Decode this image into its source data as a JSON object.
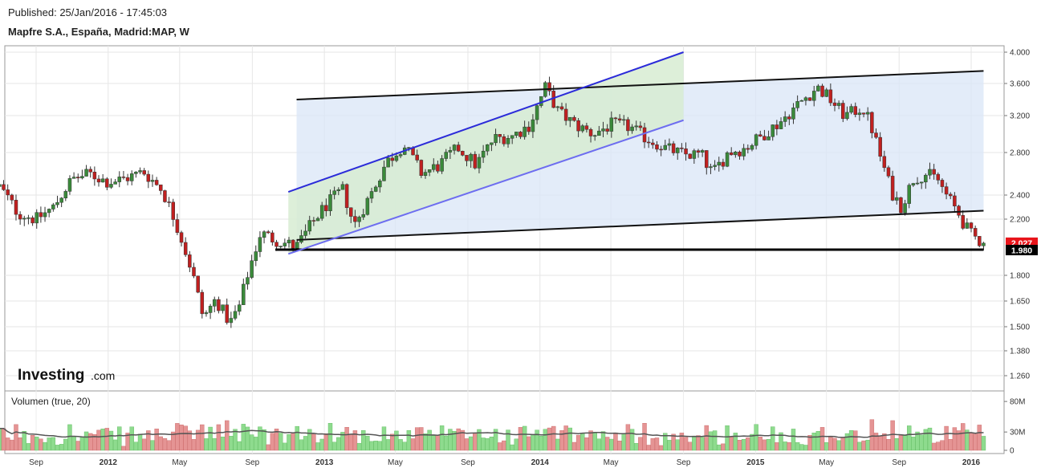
{
  "header": {
    "published": "Published: 25/Jan/2016 - 17:45:03",
    "title": "Mapfre S.A., España, Madrid:MAP, W"
  },
  "branding": {
    "logo_main": "Investing",
    "logo_suffix": ".com"
  },
  "colors": {
    "up": "#3a8a3a",
    "down": "#c02020",
    "vol_up": "#8edb8e",
    "vol_down": "#e59494",
    "channel_fill": "#d9e6f7",
    "wedge_fill": "#d7ecd2",
    "accent_line": "#2b2bd9",
    "price_badge": "#e8141a"
  },
  "chart_data": [
    {
      "type": "candlestick",
      "ylim": [
        1.2,
        4.05
      ],
      "y_ticks": [
        "4.000",
        "3.600",
        "3.200",
        "2.800",
        "2.400",
        "2.200",
        "1.980",
        "1.800",
        "1.650",
        "1.500",
        "1.380",
        "1.260"
      ],
      "y_tick_values": [
        4.0,
        3.6,
        3.2,
        2.8,
        2.4,
        2.2,
        1.98,
        1.8,
        1.65,
        1.5,
        1.38,
        1.26
      ],
      "x_tick_labels": [
        "Sep",
        "2012",
        "May",
        "Sep",
        "2013",
        "May",
        "Sep",
        "2014",
        "May",
        "Sep",
        "2015",
        "May",
        "Sep",
        "2016"
      ],
      "x_tick_dates": [
        "2011-09-01",
        "2012-01-01",
        "2012-05-01",
        "2012-09-01",
        "2013-01-01",
        "2013-05-01",
        "2013-09-01",
        "2014-01-01",
        "2014-05-01",
        "2014-09-01",
        "2015-01-01",
        "2015-05-01",
        "2015-09-01",
        "2016-01-01"
      ],
      "last_price": "2.027",
      "support_level": "1.980",
      "close_path": [
        [
          "2011-07-01",
          2.48
        ],
        [
          "2011-08-01",
          2.25
        ],
        [
          "2011-09-01",
          2.2
        ],
        [
          "2011-10-01",
          2.3
        ],
        [
          "2011-11-01",
          2.55
        ],
        [
          "2011-12-01",
          2.6
        ],
        [
          "2012-01-01",
          2.52
        ],
        [
          "2012-02-01",
          2.56
        ],
        [
          "2012-03-01",
          2.62
        ],
        [
          "2012-04-01",
          2.45
        ],
        [
          "2012-05-01",
          2.1
        ],
        [
          "2012-05-20",
          1.85
        ],
        [
          "2012-06-10",
          1.55
        ],
        [
          "2012-07-01",
          1.66
        ],
        [
          "2012-07-25",
          1.52
        ],
        [
          "2012-08-10",
          1.62
        ],
        [
          "2012-08-25",
          1.82
        ],
        [
          "2012-09-15",
          2.1
        ],
        [
          "2012-10-10",
          2.05
        ],
        [
          "2012-11-15",
          2.0
        ],
        [
          "2013-01-01",
          2.3
        ],
        [
          "2013-02-01",
          2.45
        ],
        [
          "2013-02-20",
          2.15
        ],
        [
          "2013-03-20",
          2.4
        ],
        [
          "2013-04-15",
          2.7
        ],
        [
          "2013-05-15",
          2.88
        ],
        [
          "2013-06-15",
          2.6
        ],
        [
          "2013-07-15",
          2.68
        ],
        [
          "2013-08-15",
          2.85
        ],
        [
          "2013-09-15",
          2.68
        ],
        [
          "2013-10-15",
          2.95
        ],
        [
          "2013-11-15",
          2.98
        ],
        [
          "2013-12-15",
          3.1
        ],
        [
          "2014-01-10",
          3.55
        ],
        [
          "2014-02-01",
          3.25
        ],
        [
          "2014-03-01",
          3.1
        ],
        [
          "2014-04-01",
          3.0
        ],
        [
          "2014-05-01",
          3.1
        ],
        [
          "2014-06-01",
          3.08
        ],
        [
          "2014-07-01",
          2.95
        ],
        [
          "2014-08-01",
          2.85
        ],
        [
          "2014-09-01",
          2.78
        ],
        [
          "2014-10-01",
          2.78
        ],
        [
          "2014-10-20",
          2.6
        ],
        [
          "2014-11-15",
          2.8
        ],
        [
          "2014-12-15",
          2.85
        ],
        [
          "2015-01-15",
          3.0
        ],
        [
          "2015-02-15",
          3.15
        ],
        [
          "2015-03-15",
          3.35
        ],
        [
          "2015-04-15",
          3.55
        ],
        [
          "2015-05-01",
          3.45
        ],
        [
          "2015-06-01",
          3.2
        ],
        [
          "2015-07-01",
          3.3
        ],
        [
          "2015-07-15",
          3.1
        ],
        [
          "2015-08-01",
          2.75
        ],
        [
          "2015-08-20",
          2.42
        ],
        [
          "2015-09-05",
          2.3
        ],
        [
          "2015-09-25",
          2.55
        ],
        [
          "2015-10-15",
          2.6
        ],
        [
          "2015-11-05",
          2.55
        ],
        [
          "2015-11-20",
          2.4
        ],
        [
          "2015-12-10",
          2.25
        ],
        [
          "2015-12-28",
          2.1
        ],
        [
          "2016-01-22",
          2.027
        ]
      ],
      "trendlines": [
        {
          "name": "channel-top",
          "from": [
            "2012-11-15",
            3.4
          ],
          "to": [
            "2016-01-22",
            3.76
          ]
        },
        {
          "name": "channel-bottom",
          "from": [
            "2012-11-15",
            2.05
          ],
          "to": [
            "2016-01-22",
            2.27
          ]
        },
        {
          "name": "support",
          "from": [
            "2012-10-10",
            1.98
          ],
          "to": [
            "2016-01-22",
            1.98
          ]
        },
        {
          "name": "rising-channel-top",
          "from": [
            "2012-11-01",
            2.43
          ],
          "to": [
            "2014-09-01",
            4.0
          ]
        },
        {
          "name": "rising-channel-bottom",
          "from": [
            "2012-11-01",
            1.95
          ],
          "to": [
            "2014-09-01",
            3.15
          ]
        }
      ]
    },
    {
      "type": "bar",
      "title": "Volumen (true, 20)",
      "y_ticks": [
        "80M",
        "30M",
        "0"
      ],
      "y_tick_values": [
        80,
        30,
        0
      ],
      "unit": "M"
    }
  ]
}
